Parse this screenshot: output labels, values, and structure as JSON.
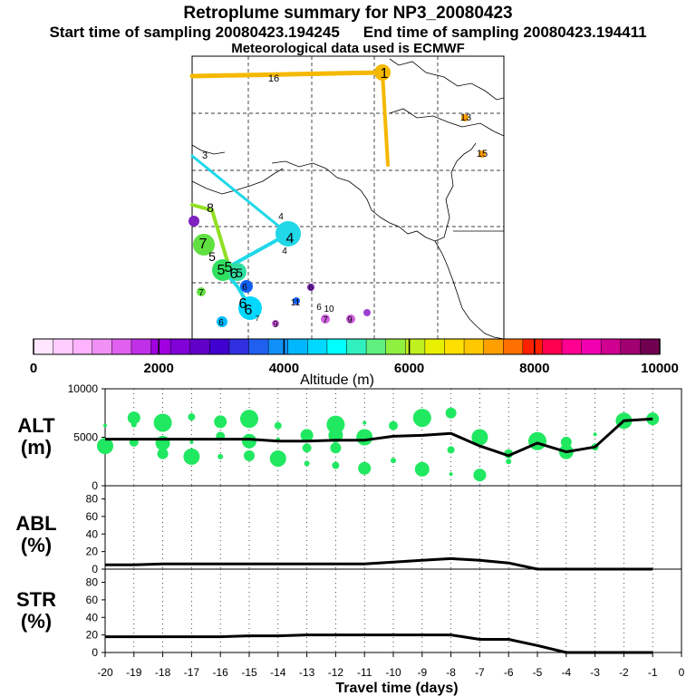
{
  "header": {
    "title": "Retroplume summary for NP3_20080423",
    "start_label": "Start time of sampling 20080423.194245",
    "end_label": "End time of sampling 20080423.194411",
    "met_label": "Meteorological data used is ECMWF"
  },
  "colorbar": {
    "title": "Altitude (m)",
    "tick_labels": [
      "0",
      "2000",
      "4000",
      "6000",
      "8000",
      "10000"
    ],
    "colors": [
      "#ffe6ff",
      "#ffccff",
      "#ffb3ff",
      "#f090f5",
      "#e060f0",
      "#c030e8",
      "#a000e0",
      "#8000d8",
      "#6000c8",
      "#4000d0",
      "#3030e0",
      "#2060f0",
      "#1090f8",
      "#00b8ff",
      "#00d8ff",
      "#00ffff",
      "#30f0c0",
      "#60f080",
      "#90f040",
      "#c0f020",
      "#e8f000",
      "#ffe000",
      "#ffc800",
      "#ffa000",
      "#ff7000",
      "#ff2000",
      "#ff0050",
      "#ff0090",
      "#f000b0",
      "#d00090",
      "#a00070",
      "#700050"
    ]
  },
  "map": {
    "trajectory_labels": [
      "1",
      "3",
      "4",
      "5",
      "6",
      "7",
      "8",
      "9",
      "10",
      "11",
      "13",
      "15",
      "16"
    ],
    "colors": {
      "trajectory_orange": "#f5b800",
      "trajectory_cyan": "#20d8e8",
      "trajectory_green": "#30e060",
      "trajectory_lime": "#90e020",
      "point_purple": "#8020c0",
      "point_magenta": "#d060e0"
    }
  },
  "panels": {
    "alt": {
      "label": "ALT\n(m)"
    },
    "abl": {
      "label": "ABL\n(%)"
    },
    "str": {
      "label": "STR\n(%)"
    },
    "xlabel": "Travel time (days)",
    "colors": {
      "line": "#000000",
      "scatter": "#20e860"
    }
  },
  "chart_data": [
    {
      "type": "line",
      "title": "ALT",
      "ylabel": "ALT (m)",
      "xlabel": "Travel time (days)",
      "x": [
        -20,
        -19,
        -18,
        -17,
        -16,
        -15,
        -14,
        -13,
        -12,
        -11,
        -10,
        -9,
        -8,
        -7,
        -6,
        -5,
        -4,
        -3,
        -2,
        -1
      ],
      "values": [
        4800,
        4800,
        4800,
        4800,
        4800,
        4800,
        4600,
        4600,
        4700,
        4700,
        5100,
        5200,
        5400,
        4100,
        3100,
        4400,
        3500,
        4000,
        6700,
        6900
      ],
      "scatter": [
        {
          "x": -20,
          "y": 6200
        },
        {
          "x": -20,
          "y": 4100
        },
        {
          "x": -19,
          "y": 7000
        },
        {
          "x": -19,
          "y": 4500
        },
        {
          "x": -19,
          "y": 6300
        },
        {
          "x": -18,
          "y": 6500
        },
        {
          "x": -18,
          "y": 4400
        },
        {
          "x": -18,
          "y": 3300
        },
        {
          "x": -17,
          "y": 7100
        },
        {
          "x": -17,
          "y": 4500
        },
        {
          "x": -17,
          "y": 3000
        },
        {
          "x": -16,
          "y": 6600
        },
        {
          "x": -16,
          "y": 5100
        },
        {
          "x": -16,
          "y": 3000
        },
        {
          "x": -15,
          "y": 6900
        },
        {
          "x": -15,
          "y": 4600
        },
        {
          "x": -15,
          "y": 3100
        },
        {
          "x": -14,
          "y": 6200
        },
        {
          "x": -14,
          "y": 4800
        },
        {
          "x": -14,
          "y": 2800
        },
        {
          "x": -13,
          "y": 5200
        },
        {
          "x": -13,
          "y": 3900
        },
        {
          "x": -13,
          "y": 2300
        },
        {
          "x": -12,
          "y": 6300
        },
        {
          "x": -12,
          "y": 5200
        },
        {
          "x": -12,
          "y": 3900
        },
        {
          "x": -12,
          "y": 2100
        },
        {
          "x": -11,
          "y": 6500
        },
        {
          "x": -11,
          "y": 5000
        },
        {
          "x": -11,
          "y": 1800
        },
        {
          "x": -10,
          "y": 6200
        },
        {
          "x": -10,
          "y": 2600
        },
        {
          "x": -9,
          "y": 7000
        },
        {
          "x": -9,
          "y": 1700
        },
        {
          "x": -8,
          "y": 7500
        },
        {
          "x": -8,
          "y": 3700
        },
        {
          "x": -8,
          "y": 1200
        },
        {
          "x": -7,
          "y": 5000
        },
        {
          "x": -7,
          "y": 1100
        },
        {
          "x": -6,
          "y": 3300
        },
        {
          "x": -6,
          "y": 2500
        },
        {
          "x": -5,
          "y": 4600
        },
        {
          "x": -4,
          "y": 3500
        },
        {
          "x": -4,
          "y": 4500
        },
        {
          "x": -3,
          "y": 4000
        },
        {
          "x": -3,
          "y": 5300
        },
        {
          "x": -2,
          "y": 6700
        },
        {
          "x": -1,
          "y": 6900
        }
      ],
      "ylim": [
        0,
        10000
      ],
      "xlim": [
        -20,
        0
      ],
      "yticks": [
        0,
        5000,
        10000
      ]
    },
    {
      "type": "line",
      "title": "ABL",
      "ylabel": "ABL (%)",
      "xlabel": "Travel time (days)",
      "x": [
        -20,
        -19,
        -18,
        -17,
        -16,
        -15,
        -14,
        -13,
        -12,
        -11,
        -10,
        -9,
        -8,
        -7,
        -6,
        -5,
        -4,
        -3,
        -2,
        -1
      ],
      "values": [
        5,
        5,
        6,
        6,
        6,
        6,
        6,
        6,
        6,
        6,
        8,
        10,
        12,
        10,
        7,
        0,
        0,
        0,
        0,
        0
      ],
      "ylim": [
        0,
        95
      ],
      "xlim": [
        -20,
        0
      ],
      "yticks": [
        0,
        20,
        40,
        60,
        80
      ]
    },
    {
      "type": "line",
      "title": "STR",
      "ylabel": "STR (%)",
      "xlabel": "Travel time (days)",
      "x": [
        -20,
        -19,
        -18,
        -17,
        -16,
        -15,
        -14,
        -13,
        -12,
        -11,
        -10,
        -9,
        -8,
        -7,
        -6,
        -5,
        -4,
        -3,
        -2,
        -1
      ],
      "values": [
        18,
        18,
        18,
        18,
        18,
        19,
        19,
        20,
        20,
        20,
        20,
        20,
        20,
        15,
        15,
        8,
        0,
        0,
        0,
        0
      ],
      "ylim": [
        0,
        95
      ],
      "xlim": [
        -20,
        0
      ],
      "yticks": [
        0,
        20,
        40,
        60,
        80
      ]
    }
  ],
  "x_tick_labels": [
    "-20",
    "-19",
    "-18",
    "-17",
    "-16",
    "-15",
    "-14",
    "-13",
    "-12",
    "-11",
    "-10",
    "-9",
    "-8",
    "-7",
    "-6",
    "-5",
    "-4",
    "-3",
    "-2",
    "-1",
    "0"
  ]
}
